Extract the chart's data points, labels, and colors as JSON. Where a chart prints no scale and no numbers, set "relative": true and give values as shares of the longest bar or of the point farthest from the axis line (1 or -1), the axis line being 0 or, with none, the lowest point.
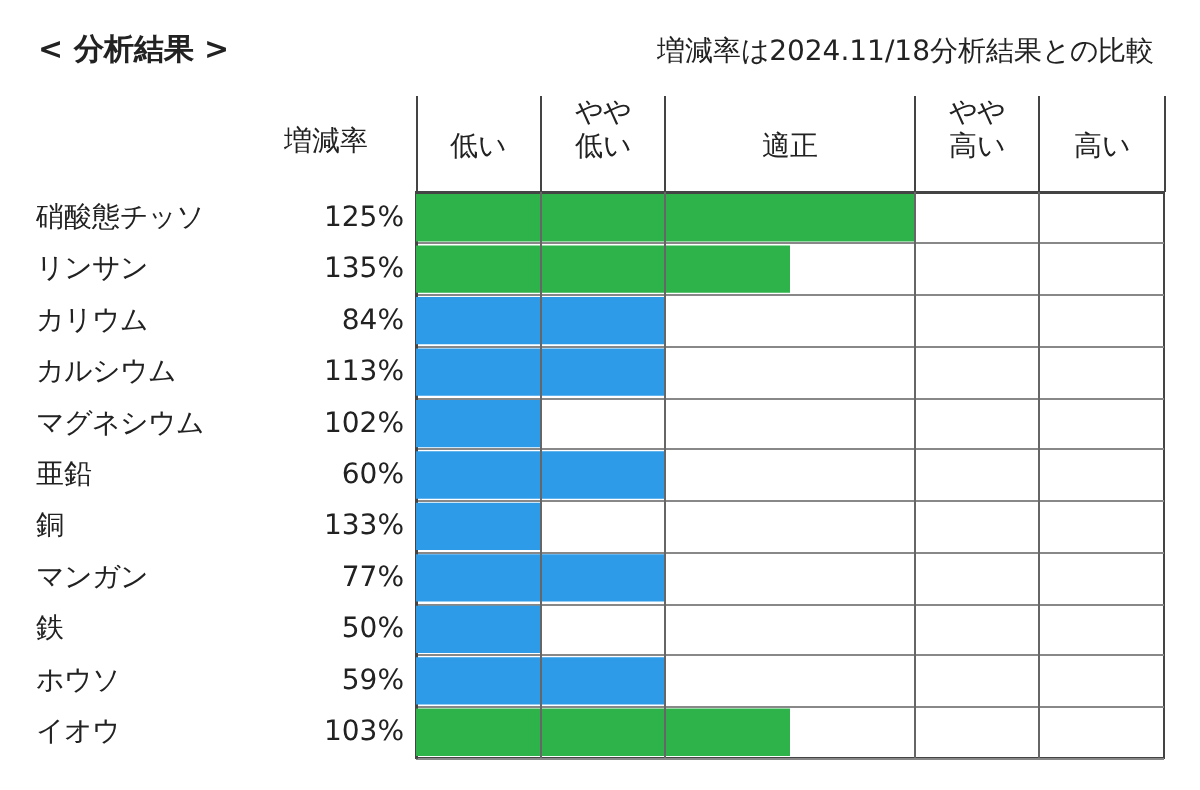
{
  "chart_data": {
    "type": "bar",
    "orientation": "horizontal",
    "relative": true,
    "title": "< 分析結果 >",
    "subtitle": "増減率は2024.11/18分析結果との比較",
    "ylabel": "増減率",
    "categories": [
      "硝酸態チッソ",
      "リンサン",
      "カリウム",
      "カルシウム",
      "マグネシウム",
      "亜鉛",
      "銅",
      "マンガン",
      "鉄",
      "ホウソ",
      "イオウ"
    ],
    "values": [
      1,
      0.75,
      0.5,
      0.5,
      0.25,
      0.5,
      0.25,
      0.5,
      0.25,
      0.5,
      0.75
    ],
    "colors": [
      "#2db34a",
      "#2db34a",
      "#2e9be8",
      "#2e9be8",
      "#2e9be8",
      "#2e9be8",
      "#2e9be8",
      "#2e9be8",
      "#2e9be8",
      "#2e9be8",
      "#2db34a"
    ],
    "grid": true,
    "ref_lines": [
      {
        "axis": "x",
        "value": 0.25,
        "color": "#666666"
      },
      {
        "axis": "x",
        "value": 0.5,
        "color": "#666666"
      },
      {
        "axis": "x",
        "value": 1,
        "color": "#666666"
      },
      {
        "axis": "x",
        "value": 1.25,
        "color": "#666666"
      }
    ],
    "annotations": [
      "低い",
      "やや低い",
      "適正",
      "やや高い",
      "高い",
      "125%",
      "135%",
      "84%",
      "113%",
      "102%",
      "60%",
      "133%",
      "77%",
      "50%",
      "59%",
      "103%"
    ]
  }
}
